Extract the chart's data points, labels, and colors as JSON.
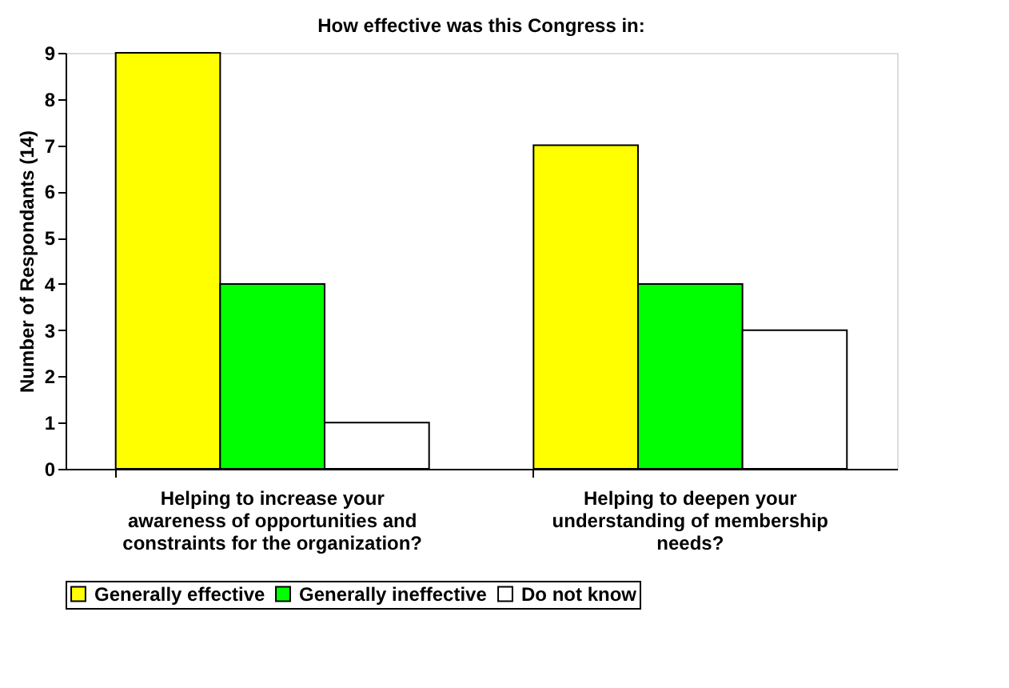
{
  "chart_data": {
    "type": "bar",
    "title": "How effective was this Congress in:",
    "ylabel": "Number of Respondants (14)",
    "categories": [
      "Helping to increase your awareness of opportunities and constraints for the organization?",
      "Helping to deepen your understanding of membership needs?"
    ],
    "series": [
      {
        "name": "Generally effective",
        "color": "#ffff00",
        "values": [
          9,
          7
        ]
      },
      {
        "name": "Generally ineffective",
        "color": "#00ff00",
        "values": [
          4,
          4
        ]
      },
      {
        "name": "Do not know",
        "color": "#ffffff",
        "values": [
          1,
          3
        ]
      }
    ],
    "ylim": [
      0,
      9
    ],
    "yticks": [
      0,
      1,
      2,
      3,
      4,
      5,
      6,
      7,
      8,
      9
    ],
    "grid": false,
    "legend": "bottom"
  }
}
